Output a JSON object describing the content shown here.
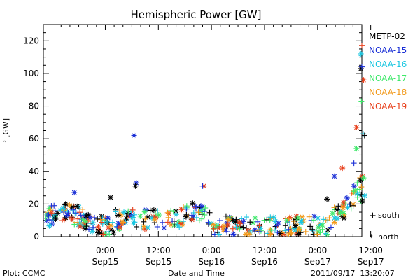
{
  "chart_data": {
    "type": "scatter",
    "title": "Hemispheric Power [GW]",
    "xlabel": "Date and Time",
    "ylabel": "P [GW]",
    "ylim": [
      0,
      130
    ],
    "y_ticks": [
      0,
      20,
      40,
      60,
      80,
      100,
      120
    ],
    "xlim_hours": [
      -14,
      58
    ],
    "x_ticks": [
      {
        "h": 0,
        "time": "0:00",
        "date": "Sep15"
      },
      {
        "h": 12,
        "time": "12:00",
        "date": "Sep15"
      },
      {
        "h": 24,
        "time": "0:00",
        "date": "Sep16"
      },
      {
        "h": 36,
        "time": "12:00",
        "date": "Sep16"
      },
      {
        "h": 48,
        "time": "0:00",
        "date": "Sep17"
      },
      {
        "h": 60,
        "time": "12:00",
        "date": "Sep17"
      }
    ],
    "legend_position": "right",
    "satellites": [
      {
        "name": "METP-02",
        "color": "#000000"
      },
      {
        "name": "NOAA-15",
        "color": "#1a2fd6"
      },
      {
        "name": "NOAA-16",
        "color": "#19c6e0"
      },
      {
        "name": "NOAA-17",
        "color": "#3ee86a"
      },
      {
        "name": "NOAA-18",
        "color": "#f29a1c"
      },
      {
        "name": "NOAA-19",
        "color": "#e8401c"
      }
    ],
    "markers": {
      "south": "+",
      "north": "*"
    },
    "marker_legend": {
      "south_label": "south",
      "north_label": "north"
    },
    "highlights": [
      {
        "sat": 1,
        "hemi": "north",
        "h": 6.5,
        "y": 62
      },
      {
        "sat": 0,
        "hemi": "north",
        "h": 57.8,
        "y": 103
      },
      {
        "sat": 1,
        "hemi": "south",
        "h": 58.0,
        "y": 104
      },
      {
        "sat": 5,
        "hemi": "south",
        "h": 58.0,
        "y": 117
      },
      {
        "sat": 2,
        "hemi": "north",
        "h": 57.8,
        "y": 112
      },
      {
        "sat": 5,
        "hemi": "north",
        "h": 58.4,
        "y": 96
      },
      {
        "sat": 3,
        "hemi": "south",
        "h": 57.9,
        "y": 83
      },
      {
        "sat": 5,
        "hemi": "north",
        "h": 56.8,
        "y": 67
      },
      {
        "sat": 2,
        "hemi": "south",
        "h": 58.3,
        "y": 63
      },
      {
        "sat": 0,
        "hemi": "south",
        "h": 58.6,
        "y": 62
      },
      {
        "sat": 3,
        "hemi": "north",
        "h": 56.8,
        "y": 54
      },
      {
        "sat": 1,
        "hemi": "south",
        "h": 56.2,
        "y": 45
      },
      {
        "sat": 2,
        "hemi": "north",
        "h": 58.6,
        "y": 25
      },
      {
        "sat": 3,
        "hemi": "north",
        "h": 58.4,
        "y": 36
      },
      {
        "sat": 5,
        "hemi": "north",
        "h": 53.6,
        "y": 42
      },
      {
        "sat": 1,
        "hemi": "north",
        "h": 51.8,
        "y": 37
      },
      {
        "sat": 0,
        "hemi": "north",
        "h": 50.1,
        "y": 23
      },
      {
        "sat": 1,
        "hemi": "north",
        "h": 7.0,
        "y": 33
      },
      {
        "sat": 0,
        "hemi": "north",
        "h": 6.8,
        "y": 31
      },
      {
        "sat": 5,
        "hemi": "north",
        "h": 22.3,
        "y": 31
      },
      {
        "sat": 1,
        "hemi": "south",
        "h": 22.0,
        "y": 31
      },
      {
        "sat": 0,
        "hemi": "north",
        "h": 1.2,
        "y": 24
      },
      {
        "sat": 1,
        "hemi": "north",
        "h": -7.0,
        "y": 27
      }
    ]
  },
  "footer": {
    "left": "Plot: CCMC",
    "center": "Date and Time",
    "right": "2011/09/17  13:20:07"
  }
}
